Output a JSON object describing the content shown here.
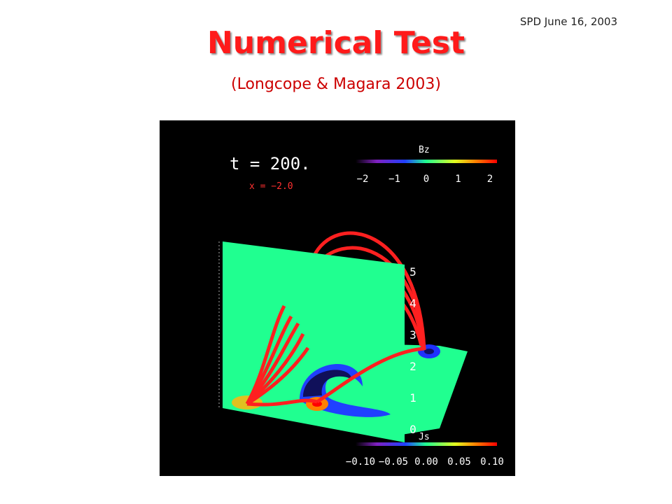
{
  "header": {
    "date": "SPD June 16, 2003",
    "title": "Numerical Test",
    "subtitle": "(Longcope & Magara 2003)"
  },
  "figure": {
    "time_label": "t = 200.",
    "x_label": "x = −2.0",
    "bz_colorbar": {
      "label": "Bz",
      "ticks": [
        "−2",
        "−1",
        "0",
        "1",
        "2"
      ]
    },
    "js_colorbar": {
      "label": "Js",
      "ticks": [
        "−0.10",
        "−0.05",
        "0.00",
        "0.05",
        "0.10"
      ]
    },
    "z_axis": [
      "5",
      "4",
      "3",
      "2",
      "1",
      "0"
    ]
  }
}
